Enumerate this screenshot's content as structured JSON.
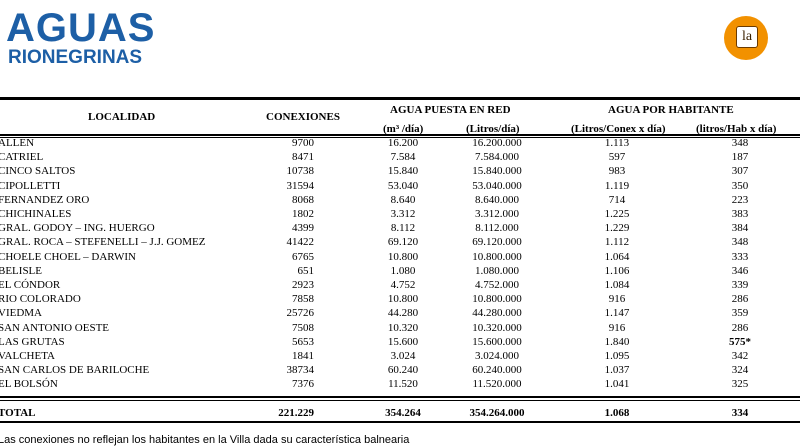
{
  "logo": {
    "line1": "AGUAS",
    "line2": "RIONEGRINAS"
  },
  "badge": "la",
  "headers": {
    "localidad": "LOCALIDAD",
    "conexiones": "CONEXIONES",
    "agua_red": "AGUA PUESTA EN RED",
    "agua_hab": "AGUA  POR HABITANTE",
    "m3": "(m³ /día)",
    "litros": "(Litros/día)",
    "conex": "(Litros/Conex x día)",
    "hab": "(litros/Hab x día)"
  },
  "rows": [
    [
      "ALLEN",
      "9700",
      "16.200",
      "16.200.000",
      "1.113",
      "348"
    ],
    [
      "CATRIEL",
      "8471",
      "7.584",
      "7.584.000",
      "597",
      "187"
    ],
    [
      "CINCO SALTOS",
      "10738",
      "15.840",
      "15.840.000",
      "983",
      "307"
    ],
    [
      "CIPOLLETTI",
      "31594",
      "53.040",
      "53.040.000",
      "1.119",
      "350"
    ],
    [
      "FERNANDEZ ORO",
      "8068",
      "8.640",
      "8.640.000",
      "714",
      "223"
    ],
    [
      "CHICHINALES",
      "1802",
      "3.312",
      "3.312.000",
      "1.225",
      "383"
    ],
    [
      "GRAL. GODOY – ING. HUERGO",
      "4399",
      "8.112",
      "8.112.000",
      "1.229",
      "384"
    ],
    [
      "GRAL. ROCA – STEFENELLI – J.J. GOMEZ",
      "41422",
      "69.120",
      "69.120.000",
      "1.112",
      "348"
    ],
    [
      "CHOELE CHOEL – DARWIN",
      "6765",
      "10.800",
      "10.800.000",
      "1.064",
      "333"
    ],
    [
      "BELISLE",
      "651",
      "1.080",
      "1.080.000",
      "1.106",
      "346"
    ],
    [
      "EL CÓNDOR",
      "2923",
      "4.752",
      "4.752.000",
      "1.084",
      "339"
    ],
    [
      "RIO COLORADO",
      "7858",
      "10.800",
      "10.800.000",
      "916",
      "286"
    ],
    [
      "VIEDMA",
      "25726",
      "44.280",
      "44.280.000",
      "1.147",
      "359"
    ],
    [
      "SAN ANTONIO OESTE",
      "7508",
      "10.320",
      "10.320.000",
      "916",
      "286"
    ],
    [
      "LAS GRUTAS",
      "5653",
      "15.600",
      "15.600.000",
      "1.840",
      "575*"
    ],
    [
      "VALCHETA",
      "1841",
      "3.024",
      "3.024.000",
      "1.095",
      "342"
    ],
    [
      "SAN CARLOS DE BARILOCHE",
      "38734",
      "60.240",
      "60.240.000",
      "1.037",
      "324"
    ],
    [
      "EL BOLSÓN",
      "7376",
      "11.520",
      "11.520.000",
      "1.041",
      "325"
    ]
  ],
  "total": [
    "TOTAL",
    "221.229",
    "354.264",
    "354.264.000",
    "1.068",
    "334"
  ],
  "footnote": "Las conexiones no reflejan los habitantes en la Villa dada su característica balnearia"
}
